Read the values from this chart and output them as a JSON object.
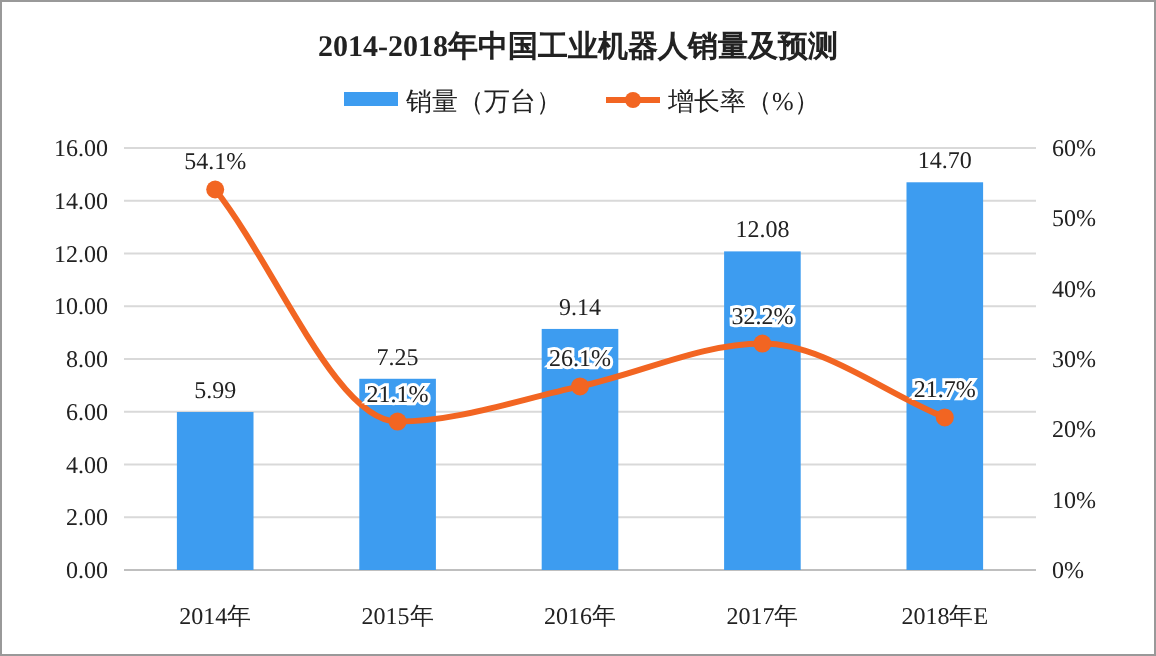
{
  "chart_data": {
    "type": "bar",
    "title": "2014-2018年中国工业机器人销量及预测",
    "categories": [
      "2014年",
      "2015年",
      "2016年",
      "2017年",
      "2018年E"
    ],
    "series": [
      {
        "name": "销量（万台）",
        "color": "#3d9cf0",
        "values": [
          5.99,
          7.25,
          9.14,
          12.08,
          14.7
        ],
        "value_labels": [
          "5.99",
          "7.25",
          "9.14",
          "12.08",
          "14.70"
        ]
      },
      {
        "name": "增长率（%）",
        "type": "line",
        "axis": "y2",
        "color": "#f26522",
        "marker": "circle",
        "values": [
          54.1,
          21.1,
          26.1,
          32.2,
          21.7
        ],
        "value_labels": [
          "54.1%",
          "21.1%",
          "26.1%",
          "32.2%",
          "21.7%"
        ]
      }
    ],
    "ylim": [
      0,
      16
    ],
    "yticks": [
      {
        "value": 0,
        "label": "0.00"
      },
      {
        "value": 2,
        "label": "2.00"
      },
      {
        "value": 4,
        "label": "4.00"
      },
      {
        "value": 6,
        "label": "6.00"
      },
      {
        "value": 8,
        "label": "8.00"
      },
      {
        "value": 10,
        "label": "10.00"
      },
      {
        "value": 12,
        "label": "12.00"
      },
      {
        "value": 14,
        "label": "14.00"
      },
      {
        "value": 16,
        "label": "16.00"
      }
    ],
    "y2lim": [
      0,
      60
    ],
    "y2ticks": [
      {
        "value": 0,
        "label": "0%"
      },
      {
        "value": 10,
        "label": "10%"
      },
      {
        "value": 20,
        "label": "20%"
      },
      {
        "value": 30,
        "label": "30%"
      },
      {
        "value": 40,
        "label": "40%"
      },
      {
        "value": 50,
        "label": "50%"
      },
      {
        "value": 60,
        "label": "60%"
      }
    ],
    "grid": "y",
    "legend": "top"
  }
}
